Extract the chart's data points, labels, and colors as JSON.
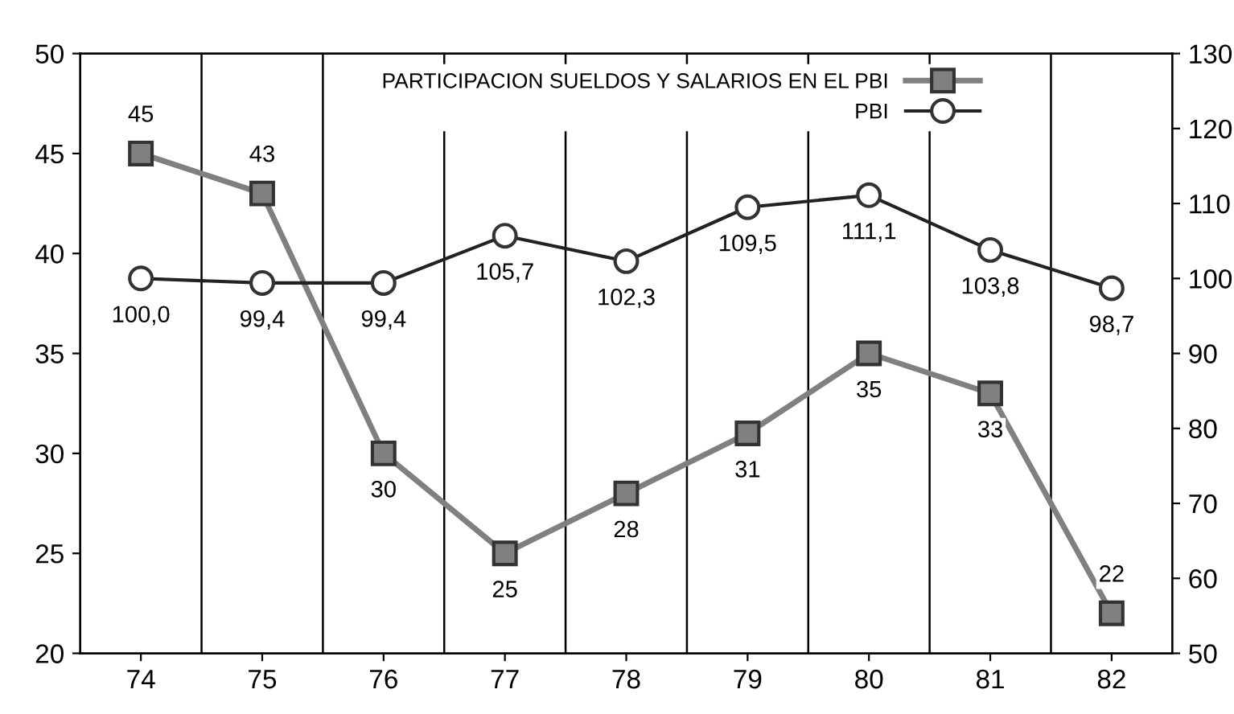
{
  "chart_data": {
    "type": "line",
    "categories": [
      "74",
      "75",
      "76",
      "77",
      "78",
      "79",
      "80",
      "81",
      "82"
    ],
    "series": [
      {
        "name": "PARTICIPACION SUELDOS Y SALARIOS EN EL PBI",
        "color": "#808080",
        "marker": "square",
        "values": [
          45,
          43,
          30,
          25,
          28,
          31,
          35,
          33,
          22
        ],
        "value_labels": [
          "45",
          "43",
          "30",
          "25",
          "28",
          "31",
          "35",
          "33",
          "22"
        ]
      },
      {
        "name": "PBI",
        "color": "#222222",
        "marker": "circle",
        "axis": "y2",
        "values": [
          100.0,
          99.4,
          99.4,
          105.7,
          102.3,
          109.5,
          111.1,
          103.8,
          98.7
        ],
        "value_labels": [
          "100,0",
          "99,4",
          "99,4",
          "105,7",
          "102,3",
          "109,5",
          "111,1",
          "103,8",
          "98,7"
        ]
      }
    ],
    "ylim": [
      20,
      50
    ],
    "yticks": [
      20,
      25,
      30,
      35,
      40,
      45,
      50
    ],
    "y2lim": [
      50,
      130
    ],
    "y2ticks": [
      50,
      60,
      70,
      80,
      90,
      100,
      110,
      120,
      130
    ],
    "grid": "x",
    "legend": "top",
    "line_style": "solid"
  }
}
